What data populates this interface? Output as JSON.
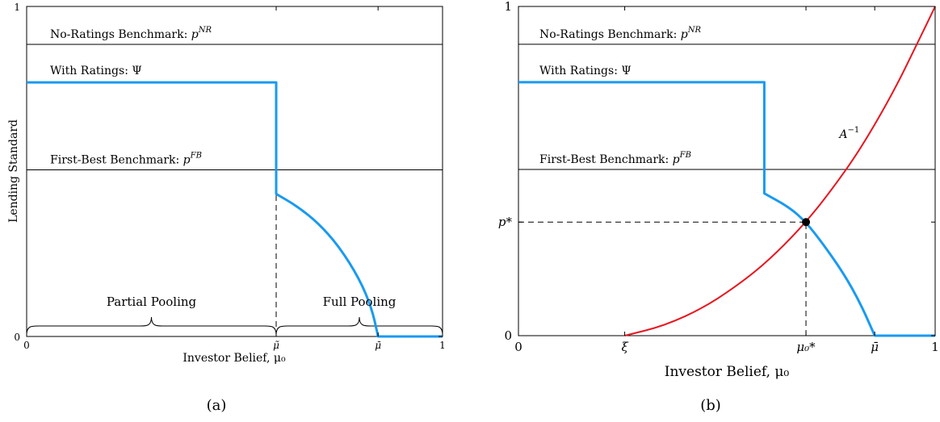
{
  "chart_data": [
    {
      "type": "line",
      "caption": "(a)",
      "xlabel": "Investor Belief, μ₀",
      "ylabel": "Lending Standard",
      "xlim": [
        0,
        1
      ],
      "ylim": [
        0,
        1
      ],
      "xticks": [
        {
          "x": 0,
          "label": "0"
        },
        {
          "x": 0.6,
          "label": "μ̃"
        },
        {
          "x": 0.845,
          "label": "μ̄"
        },
        {
          "x": 1,
          "label": "1"
        }
      ],
      "yticks": [
        {
          "y": 0,
          "label": "0"
        },
        {
          "y": 1,
          "label": "1"
        }
      ],
      "hlines": [
        {
          "name": "No-Ratings Benchmark: p^NR",
          "label_text": "No-Ratings Benchmark: ",
          "label_math": "p",
          "label_sup": "NR",
          "y": 0.885
        },
        {
          "name": "First-Best Benchmark: p^FB",
          "label_text": "First-Best Benchmark: ",
          "label_math": "p",
          "label_sup": "FB",
          "y": 0.505
        }
      ],
      "series": [
        {
          "name": "With Ratings: Ψ",
          "label_text": "With Ratings: Ψ",
          "color": "#1a9af0",
          "x": [
            0,
            0.6,
            0.6,
            0.65,
            0.7,
            0.75,
            0.8,
            0.83,
            0.845,
            0.86,
            1
          ],
          "y": [
            0.77,
            0.77,
            0.432,
            0.395,
            0.345,
            0.275,
            0.175,
            0.085,
            0,
            0,
            0
          ]
        }
      ],
      "dashed_vlines": [
        {
          "x": 0.6,
          "y_from": 0,
          "y_to": 0.432
        }
      ],
      "braces": [
        {
          "label": "Partial Pooling",
          "x_from": 0,
          "x_to": 0.6
        },
        {
          "label": "Full Pooling",
          "x_from": 0.6,
          "x_to": 1
        }
      ]
    },
    {
      "type": "line",
      "caption": "(b)",
      "xlabel": "Investor Belief, μ₀",
      "xlim": [
        0,
        1
      ],
      "ylim": [
        0,
        1
      ],
      "xticks": [
        {
          "x": 0,
          "label": "0"
        },
        {
          "x": 0.255,
          "label": "ξ"
        },
        {
          "x": 0.69,
          "label": "μ₀*"
        },
        {
          "x": 0.855,
          "label": "μ̄"
        },
        {
          "x": 1,
          "label": "1"
        }
      ],
      "yticks": [
        {
          "y": 0,
          "label": "0"
        },
        {
          "y": 0.345,
          "label": "p*"
        },
        {
          "y": 1,
          "label": "1"
        }
      ],
      "hlines": [
        {
          "name": "No-Ratings Benchmark: p^NR",
          "label_text": "No-Ratings Benchmark: ",
          "label_math": "p",
          "label_sup": "NR",
          "y": 0.885
        },
        {
          "name": "First-Best Benchmark: p^FB",
          "label_text": "First-Best Benchmark: ",
          "label_math": "p",
          "label_sup": "FB",
          "y": 0.505
        }
      ],
      "series": [
        {
          "name": "With Ratings: Ψ",
          "label_text": "With Ratings: Ψ",
          "color": "#1a9af0",
          "x": [
            0,
            0.59,
            0.59,
            0.65,
            0.69,
            0.73,
            0.78,
            0.82,
            0.855,
            0.87,
            1
          ],
          "y": [
            0.77,
            0.77,
            0.432,
            0.39,
            0.345,
            0.28,
            0.19,
            0.1,
            0,
            0,
            0
          ]
        },
        {
          "name": "A^-1",
          "label_text": "A",
          "label_sup": "−1",
          "color": "#e8141e",
          "x": [
            0.255,
            0.35,
            0.45,
            0.55,
            0.62,
            0.69,
            0.75,
            0.82,
            0.9,
            0.96,
            1
          ],
          "y": [
            0,
            0.03,
            0.088,
            0.175,
            0.252,
            0.345,
            0.44,
            0.565,
            0.74,
            0.895,
            1
          ]
        }
      ],
      "dashed_vlines": [
        {
          "x": 0.69,
          "y_from": 0,
          "y_to": 0.345
        }
      ],
      "dashed_hlines": [
        {
          "y": 0.345,
          "x_from": 0,
          "x_to": 0.69
        }
      ],
      "points": [
        {
          "x": 0.69,
          "y": 0.345,
          "color": "#000000"
        }
      ]
    }
  ]
}
